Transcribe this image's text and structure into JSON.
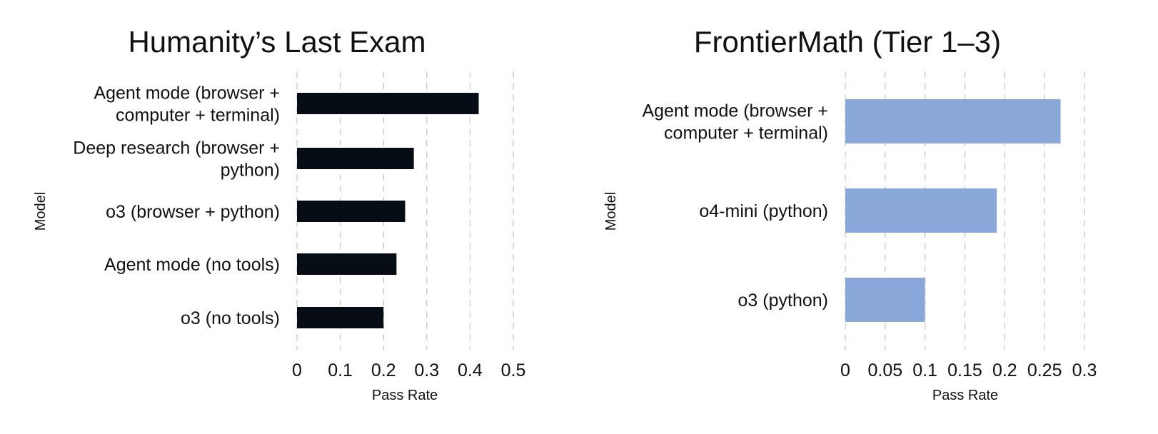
{
  "chart_data": [
    {
      "type": "bar",
      "orientation": "horizontal",
      "title": "Humanity’s Last Exam",
      "xlabel": "Pass Rate",
      "ylabel": "Model",
      "categories": [
        [
          "Agent mode (browser +",
          "computer + terminal)"
        ],
        [
          "Deep research (browser +",
          "python)"
        ],
        [
          "o3 (browser + python)"
        ],
        [
          "Agent mode (no tools)"
        ],
        [
          "o3 (no tools)"
        ]
      ],
      "values": [
        0.42,
        0.27,
        0.25,
        0.23,
        0.2
      ],
      "xlim": [
        0,
        0.5
      ],
      "xticks": [
        0,
        0.1,
        0.2,
        0.3,
        0.4,
        0.5
      ],
      "xtick_labels": [
        "0",
        "0.1",
        "0.2",
        "0.3",
        "0.4",
        "0.5"
      ],
      "grid": "vertical dashed",
      "color": "#060d14"
    },
    {
      "type": "bar",
      "orientation": "horizontal",
      "title": "FrontierMath (Tier 1–3)",
      "xlabel": "Pass Rate",
      "ylabel": "Model",
      "categories": [
        [
          "Agent mode (browser +",
          "computer + terminal)"
        ],
        [
          "o4-mini (python)"
        ],
        [
          "o3 (python)"
        ]
      ],
      "values": [
        0.27,
        0.19,
        0.1
      ],
      "xlim": [
        0,
        0.3
      ],
      "xticks": [
        0,
        0.05,
        0.1,
        0.15,
        0.2,
        0.25,
        0.3
      ],
      "xtick_labels": [
        "0",
        "0.05",
        "0.1",
        "0.15",
        "0.2",
        "0.25",
        "0.3"
      ],
      "grid": "vertical dashed",
      "color": "#8aa7d9"
    }
  ]
}
